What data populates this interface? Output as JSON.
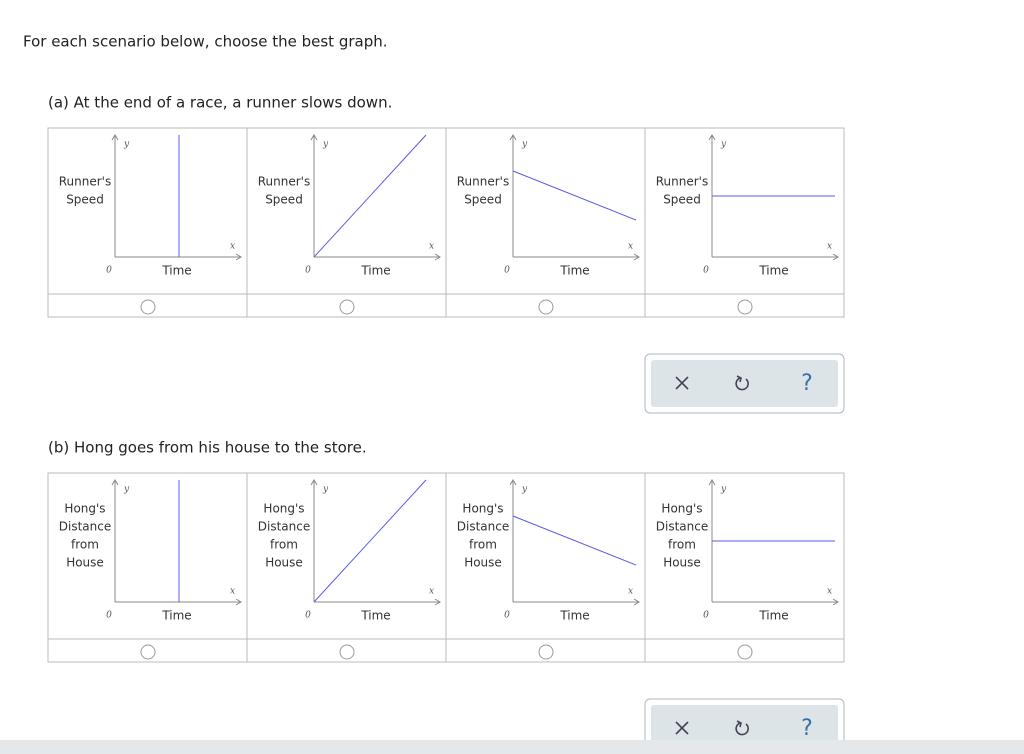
{
  "instruction": "For each scenario below, choose the best graph.",
  "questions": [
    {
      "prompt": "(a) At the end of a race, a runner slows down.",
      "options": [
        {
          "y_label": [
            "Runner's",
            "Speed"
          ],
          "x_label": "Time",
          "origin": "0",
          "x_axis": "x",
          "y_axis": "y"
        },
        {
          "y_label": [
            "Runner's",
            "Speed"
          ],
          "x_label": "Time",
          "origin": "0",
          "x_axis": "x",
          "y_axis": "y"
        },
        {
          "y_label": [
            "Runner's",
            "Speed"
          ],
          "x_label": "Time",
          "origin": "0",
          "x_axis": "x",
          "y_axis": "y"
        },
        {
          "y_label": [
            "Runner's",
            "Speed"
          ],
          "x_label": "Time",
          "origin": "0",
          "x_axis": "x",
          "y_axis": "y"
        }
      ],
      "toolbar": {
        "help": "?"
      }
    },
    {
      "prompt": "(b) Hong goes from his house to the store.",
      "options": [
        {
          "y_label": [
            "Hong's",
            "Distance",
            "from",
            "House"
          ],
          "x_label": "Time",
          "origin": "0",
          "x_axis": "x",
          "y_axis": "y"
        },
        {
          "y_label": [
            "Hong's",
            "Distance",
            "from",
            "House"
          ],
          "x_label": "Time",
          "origin": "0",
          "x_axis": "x",
          "y_axis": "y"
        },
        {
          "y_label": [
            "Hong's",
            "Distance",
            "from",
            "House"
          ],
          "x_label": "Time",
          "origin": "0",
          "x_axis": "x",
          "y_axis": "y"
        },
        {
          "y_label": [
            "Hong's",
            "Distance",
            "from",
            "House"
          ],
          "x_label": "Time",
          "origin": "0",
          "x_axis": "x",
          "y_axis": "y"
        }
      ],
      "toolbar": {
        "help": "?"
      }
    }
  ]
}
